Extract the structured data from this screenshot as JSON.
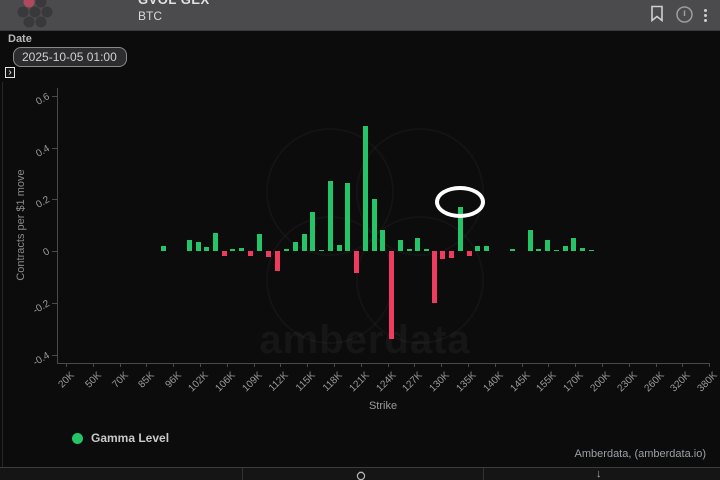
{
  "header": {
    "title_clipped": "GVOL GEX",
    "subtitle": "BTC",
    "icons": {
      "menu_glyph": "⋮"
    }
  },
  "controls": {
    "date_label": "Date",
    "date_value": "2025-10-05 01:00",
    "expander_glyph": "›"
  },
  "chart_data": {
    "type": "bar",
    "series_name": "Gamma Level",
    "xlabel": "Strike",
    "ylabel": "Contracts per $1 move",
    "ylim": [
      -0.435,
      0.63
    ],
    "yticks": [
      0.6,
      0.4,
      0.2,
      0,
      -0.2,
      -0.4
    ],
    "ytick_labels": [
      "0.6",
      "0.4",
      "0.2",
      "0",
      "-0.2",
      "-0.4"
    ],
    "xtick_labels": [
      "20K",
      "50K",
      "70K",
      "85K",
      "96K",
      "102K",
      "106K",
      "109K",
      "112K",
      "115K",
      "118K",
      "121K",
      "124K",
      "127K",
      "130K",
      "135K",
      "140K",
      "145K",
      "155K",
      "170K",
      "200K",
      "230K",
      "260K",
      "320K",
      "380K"
    ],
    "x_axis_note": "categorical strike axis; only major strikes labeled, bars exist at intermediate strikes; p = fraction of plot width",
    "bars": [
      {
        "p": 0.1613,
        "v": 0.02
      },
      {
        "p": 0.202,
        "v": 0.043
      },
      {
        "p": 0.2151,
        "v": 0.035
      },
      {
        "p": 0.2281,
        "v": 0.017
      },
      {
        "p": 0.2419,
        "v": 0.069
      },
      {
        "p": 0.255,
        "v": -0.019
      },
      {
        "p": 0.2681,
        "v": 0.009
      },
      {
        "p": 0.2819,
        "v": 0.014
      },
      {
        "p": 0.2957,
        "v": -0.017
      },
      {
        "p": 0.3088,
        "v": 0.065
      },
      {
        "p": 0.3226,
        "v": -0.022
      },
      {
        "p": 0.3372,
        "v": -0.075
      },
      {
        "p": 0.351,
        "v": 0.009
      },
      {
        "p": 0.3641,
        "v": 0.035
      },
      {
        "p": 0.3779,
        "v": 0.067
      },
      {
        "p": 0.3909,
        "v": 0.153
      },
      {
        "p": 0.404,
        "v": 0.004
      },
      {
        "p": 0.4178,
        "v": 0.271
      },
      {
        "p": 0.4316,
        "v": 0.023
      },
      {
        "p": 0.4447,
        "v": 0.262
      },
      {
        "p": 0.4585,
        "v": -0.085
      },
      {
        "p": 0.4724,
        "v": 0.485
      },
      {
        "p": 0.4854,
        "v": 0.201
      },
      {
        "p": 0.4985,
        "v": 0.082
      },
      {
        "p": 0.5123,
        "v": -0.34
      },
      {
        "p": 0.5261,
        "v": 0.045
      },
      {
        "p": 0.5392,
        "v": 0.01
      },
      {
        "p": 0.5522,
        "v": 0.052
      },
      {
        "p": 0.5653,
        "v": 0.008
      },
      {
        "p": 0.5783,
        "v": -0.2
      },
      {
        "p": 0.5906,
        "v": -0.032
      },
      {
        "p": 0.6037,
        "v": -0.026
      },
      {
        "p": 0.6175,
        "v": 0.17
      },
      {
        "p": 0.6313,
        "v": -0.017
      },
      {
        "p": 0.6444,
        "v": 0.022
      },
      {
        "p": 0.6575,
        "v": 0.019
      },
      {
        "p": 0.6982,
        "v": 0.009
      },
      {
        "p": 0.725,
        "v": 0.08
      },
      {
        "p": 0.7381,
        "v": 0.01
      },
      {
        "p": 0.7519,
        "v": 0.045
      },
      {
        "p": 0.765,
        "v": 0.006
      },
      {
        "p": 0.7788,
        "v": 0.022
      },
      {
        "p": 0.7919,
        "v": 0.052
      },
      {
        "p": 0.8049,
        "v": 0.013
      },
      {
        "p": 0.8187,
        "v": 0.006
      }
    ],
    "colors": {
      "positive": "#24c468",
      "negative": "#ee3b5f"
    },
    "annotation": {
      "type": "ellipse",
      "p": 0.6175,
      "v_center": 0.19,
      "rx": 21,
      "ry": 12,
      "color": "#ffffff"
    },
    "legend": {
      "label": "Gamma Level",
      "color": "#24c468",
      "position": "bottom-left"
    },
    "grid": false,
    "attribution": "Amberdata, (amberdata.io)",
    "watermark_text": "amberdata"
  },
  "footer": {
    "download_glyph": "↓"
  }
}
